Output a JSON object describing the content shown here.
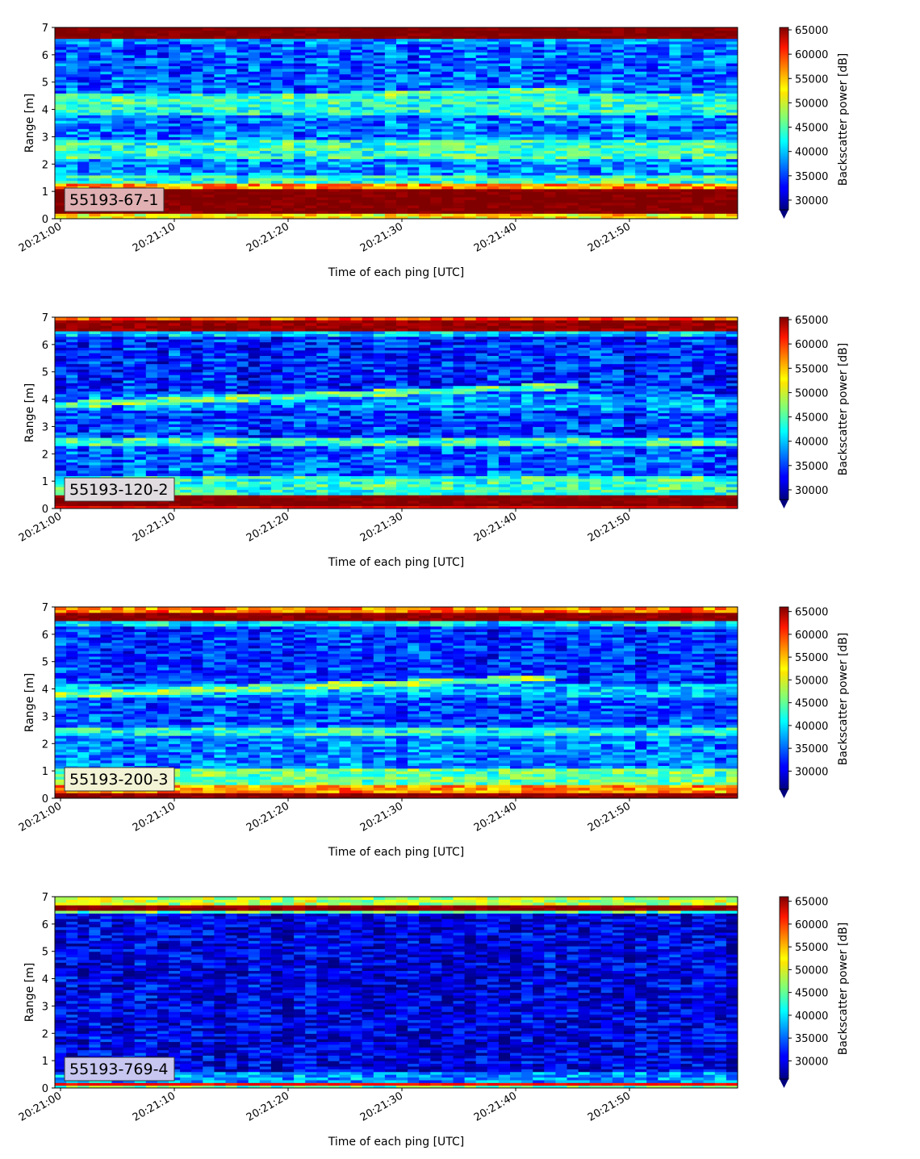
{
  "chart_data": [
    {
      "type": "heatmap",
      "id": "55193-67-1",
      "x_start": "20:21:00",
      "x_end": "20:21:59",
      "xlim": [
        "20:21:00",
        "20:21:59"
      ],
      "ylim": [
        0,
        7
      ],
      "xlabel": "Time of each ping [UTC]",
      "ylabel": "Range [m]",
      "xticks": [
        "20:21:00",
        "20:21:10",
        "20:21:20",
        "20:21:30",
        "20:21:40",
        "20:21:50"
      ],
      "yticks": [
        0,
        1,
        2,
        3,
        4,
        5,
        6,
        7
      ],
      "colorbar": {
        "label": "Backscatter power [dB]",
        "vmin": 28000,
        "vmax": 65500,
        "colormap": "jet",
        "extend": "min",
        "ticks": [
          30000,
          35000,
          40000,
          45000,
          50000,
          55000,
          60000,
          65000
        ]
      },
      "bands": [
        {
          "range": [
            0.0,
            0.2
          ],
          "level": 52000
        },
        {
          "range": [
            0.2,
            1.1
          ],
          "level": 65000
        },
        {
          "range": [
            1.1,
            1.3
          ],
          "level": 55000
        },
        {
          "range": [
            1.3,
            1.6
          ],
          "level": 44000
        },
        {
          "range": [
            1.6,
            2.2
          ],
          "level": 38000
        },
        {
          "range": [
            2.2,
            2.9
          ],
          "level": 44000
        },
        {
          "range": [
            2.9,
            3.8
          ],
          "level": 37000
        },
        {
          "range": [
            3.8,
            4.6
          ],
          "level": 43000
        },
        {
          "range": [
            4.6,
            6.4
          ],
          "level": 36000
        },
        {
          "range": [
            6.4,
            6.6
          ],
          "level": 38000
        },
        {
          "range": [
            6.6,
            7.0
          ],
          "level": 65000
        }
      ],
      "trace": {
        "start_range": 4.3,
        "end_range": 4.7,
        "level": 45000,
        "until": "20:21:45"
      }
    },
    {
      "type": "heatmap",
      "id": "55193-120-2",
      "x_start": "20:21:00",
      "x_end": "20:21:59",
      "xlim": [
        "20:21:00",
        "20:21:59"
      ],
      "ylim": [
        0,
        7
      ],
      "xlabel": "Time of each ping [UTC]",
      "ylabel": "Range [m]",
      "xticks": [
        "20:21:00",
        "20:21:10",
        "20:21:20",
        "20:21:30",
        "20:21:40",
        "20:21:50"
      ],
      "yticks": [
        0,
        1,
        2,
        3,
        4,
        5,
        6,
        7
      ],
      "colorbar": {
        "label": "Backscatter power [dB]",
        "vmin": 28000,
        "vmax": 65500,
        "colormap": "jet",
        "extend": "min",
        "ticks": [
          30000,
          35000,
          40000,
          45000,
          50000,
          55000,
          60000,
          65000
        ]
      },
      "bands": [
        {
          "range": [
            0.0,
            0.15
          ],
          "level": 60000
        },
        {
          "range": [
            0.15,
            0.55
          ],
          "level": 65000
        },
        {
          "range": [
            0.55,
            1.2
          ],
          "level": 44000
        },
        {
          "range": [
            1.2,
            2.3
          ],
          "level": 36000
        },
        {
          "range": [
            2.3,
            2.6
          ],
          "level": 44000
        },
        {
          "range": [
            2.6,
            3.6
          ],
          "level": 35000
        },
        {
          "range": [
            3.6,
            4.2
          ],
          "level": 38000
        },
        {
          "range": [
            4.2,
            6.3
          ],
          "level": 34000
        },
        {
          "range": [
            6.3,
            6.5
          ],
          "level": 40000
        },
        {
          "range": [
            6.5,
            6.9
          ],
          "level": 64000
        },
        {
          "range": [
            6.9,
            7.0
          ],
          "level": 58000
        }
      ],
      "trace": {
        "start_range": 3.8,
        "end_range": 4.5,
        "level": 46000,
        "until": "20:21:45"
      }
    },
    {
      "type": "heatmap",
      "id": "55193-200-3",
      "x_start": "20:21:00",
      "x_end": "20:21:59",
      "xlim": [
        "20:21:00",
        "20:21:59"
      ],
      "ylim": [
        0,
        7
      ],
      "xlabel": "Time of each ping [UTC]",
      "ylabel": "Range [m]",
      "xticks": [
        "20:21:00",
        "20:21:10",
        "20:21:20",
        "20:21:30",
        "20:21:40",
        "20:21:50"
      ],
      "yticks": [
        0,
        1,
        2,
        3,
        4,
        5,
        6,
        7
      ],
      "colorbar": {
        "label": "Backscatter power [dB]",
        "vmin": 26000,
        "vmax": 66000,
        "colormap": "jet",
        "extend": "min",
        "ticks": [
          30000,
          35000,
          40000,
          45000,
          50000,
          55000,
          60000,
          65000
        ]
      },
      "bands": [
        {
          "range": [
            0.0,
            0.25
          ],
          "level": 65000
        },
        {
          "range": [
            0.25,
            0.5
          ],
          "level": 55000
        },
        {
          "range": [
            0.5,
            1.1
          ],
          "level": 45000
        },
        {
          "range": [
            1.1,
            2.3
          ],
          "level": 36000
        },
        {
          "range": [
            2.3,
            2.6
          ],
          "level": 42000
        },
        {
          "range": [
            2.6,
            3.7
          ],
          "level": 34000
        },
        {
          "range": [
            3.7,
            4.2
          ],
          "level": 38000
        },
        {
          "range": [
            4.2,
            6.3
          ],
          "level": 33000
        },
        {
          "range": [
            6.3,
            6.5
          ],
          "level": 40000
        },
        {
          "range": [
            6.5,
            6.8
          ],
          "level": 65000
        },
        {
          "range": [
            6.8,
            7.0
          ],
          "level": 56000
        }
      ],
      "trace": {
        "start_range": 3.8,
        "end_range": 4.4,
        "level": 46000,
        "until": "20:21:43"
      }
    },
    {
      "type": "heatmap",
      "id": "55193-769-4",
      "x_start": "20:21:00",
      "x_end": "20:21:59",
      "xlim": [
        "20:21:00",
        "20:21:59"
      ],
      "ylim": [
        0,
        7
      ],
      "xlabel": "Time of each ping [UTC]",
      "ylabel": "Range [m]",
      "xticks": [
        "20:21:00",
        "20:21:10",
        "20:21:20",
        "20:21:30",
        "20:21:40",
        "20:21:50"
      ],
      "yticks": [
        0,
        1,
        2,
        3,
        4,
        5,
        6,
        7
      ],
      "colorbar": {
        "label": "Backscatter power [dB]",
        "vmin": 26000,
        "vmax": 66000,
        "colormap": "jet",
        "extend": "min",
        "ticks": [
          30000,
          35000,
          40000,
          45000,
          50000,
          55000,
          60000,
          65000
        ]
      },
      "bands": [
        {
          "range": [
            0.0,
            0.1
          ],
          "level": 45000
        },
        {
          "range": [
            0.1,
            0.25
          ],
          "level": 60000
        },
        {
          "range": [
            0.25,
            0.6
          ],
          "level": 37000
        },
        {
          "range": [
            0.6,
            6.4
          ],
          "level": 30000
        },
        {
          "range": [
            6.4,
            6.5
          ],
          "level": 45000
        },
        {
          "range": [
            6.5,
            6.7
          ],
          "level": 65000
        },
        {
          "range": [
            6.7,
            7.0
          ],
          "level": 48000
        }
      ],
      "trace": null
    }
  ]
}
